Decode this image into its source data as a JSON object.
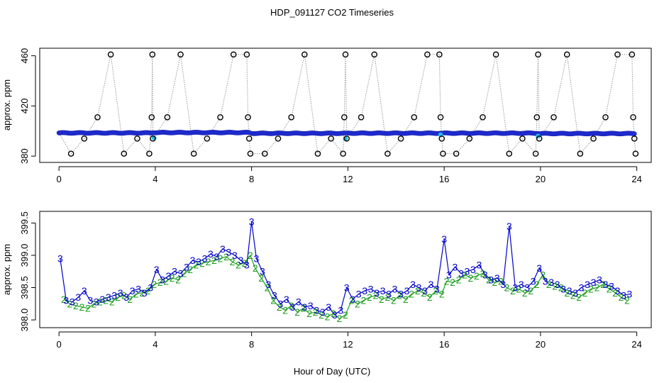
{
  "title": "HDP_091127  CO2 Timeseries",
  "xlabel": "Hour of Day (UTC)",
  "colors": {
    "ring_marker": "#000000",
    "dot_fill": "#1f2fd8",
    "dot_fill_light": "#2ab6e8",
    "series_3": "#0000cc",
    "series_2": "#1a9c1a",
    "connector": "#9a9a9a",
    "axis": "#000000"
  },
  "chart_data": [
    {
      "type": "scatter",
      "panel": "top",
      "ylabel": "approx. ppm",
      "xlim": [
        -0.8,
        24.6
      ],
      "ylim": [
        375,
        466
      ],
      "x_ticks": [
        0,
        4,
        8,
        12,
        16,
        20,
        24
      ],
      "y_ticks": [
        380,
        420,
        460
      ],
      "baseline": {
        "segments": [
          {
            "x0": 0.0,
            "x1": 3.85,
            "y": 398.5
          },
          {
            "x0": 3.9,
            "x1": 7.9,
            "y": 398.8
          },
          {
            "x0": 8.0,
            "x1": 11.9,
            "y": 398.2
          },
          {
            "x0": 12.0,
            "x1": 15.9,
            "y": 398.3
          },
          {
            "x0": 16.0,
            "x1": 19.9,
            "y": 398.3
          },
          {
            "x0": 20.0,
            "x1": 23.9,
            "y": 398.0
          }
        ],
        "step": 0.05
      },
      "light_dots": [
        {
          "x": 3.95,
          "y": 394.5
        },
        {
          "x": 11.9,
          "y": 394.0
        },
        {
          "x": 15.85,
          "y": 397.0
        },
        {
          "x": 19.9,
          "y": 396.0
        }
      ],
      "rings": [
        {
          "x": 0.5,
          "y": 382
        },
        {
          "x": 1.05,
          "y": 394
        },
        {
          "x": 1.6,
          "y": 411
        },
        {
          "x": 2.15,
          "y": 461
        },
        {
          "x": 2.7,
          "y": 382
        },
        {
          "x": 3.25,
          "y": 394
        },
        {
          "x": 3.75,
          "y": 382
        },
        {
          "x": 3.85,
          "y": 411
        },
        {
          "x": 3.88,
          "y": 461
        },
        {
          "x": 3.9,
          "y": 394
        },
        {
          "x": 4.5,
          "y": 411
        },
        {
          "x": 5.05,
          "y": 461
        },
        {
          "x": 5.6,
          "y": 382
        },
        {
          "x": 6.15,
          "y": 394
        },
        {
          "x": 6.7,
          "y": 411
        },
        {
          "x": 7.25,
          "y": 461
        },
        {
          "x": 7.8,
          "y": 461
        },
        {
          "x": 7.85,
          "y": 411
        },
        {
          "x": 7.9,
          "y": 394
        },
        {
          "x": 7.95,
          "y": 382
        },
        {
          "x": 8.55,
          "y": 382
        },
        {
          "x": 9.1,
          "y": 394
        },
        {
          "x": 9.65,
          "y": 411
        },
        {
          "x": 10.2,
          "y": 461
        },
        {
          "x": 10.75,
          "y": 382
        },
        {
          "x": 11.3,
          "y": 394
        },
        {
          "x": 11.8,
          "y": 382
        },
        {
          "x": 11.85,
          "y": 411
        },
        {
          "x": 11.9,
          "y": 461
        },
        {
          "x": 11.95,
          "y": 394
        },
        {
          "x": 12.55,
          "y": 411
        },
        {
          "x": 13.1,
          "y": 461
        },
        {
          "x": 13.65,
          "y": 382
        },
        {
          "x": 14.2,
          "y": 394
        },
        {
          "x": 14.75,
          "y": 411
        },
        {
          "x": 15.3,
          "y": 461
        },
        {
          "x": 15.8,
          "y": 461
        },
        {
          "x": 15.85,
          "y": 411
        },
        {
          "x": 15.9,
          "y": 394
        },
        {
          "x": 15.95,
          "y": 382
        },
        {
          "x": 16.5,
          "y": 382
        },
        {
          "x": 17.05,
          "y": 394
        },
        {
          "x": 17.6,
          "y": 411
        },
        {
          "x": 18.15,
          "y": 461
        },
        {
          "x": 18.7,
          "y": 382
        },
        {
          "x": 19.25,
          "y": 394
        },
        {
          "x": 19.8,
          "y": 382
        },
        {
          "x": 19.85,
          "y": 411
        },
        {
          "x": 19.9,
          "y": 461
        },
        {
          "x": 19.95,
          "y": 394
        },
        {
          "x": 20.55,
          "y": 411
        },
        {
          "x": 21.1,
          "y": 461
        },
        {
          "x": 21.65,
          "y": 382
        },
        {
          "x": 22.2,
          "y": 394
        },
        {
          "x": 22.7,
          "y": 411
        },
        {
          "x": 23.2,
          "y": 461
        },
        {
          "x": 23.8,
          "y": 461
        },
        {
          "x": 23.85,
          "y": 411
        },
        {
          "x": 23.9,
          "y": 394
        },
        {
          "x": 23.95,
          "y": 382
        }
      ]
    },
    {
      "type": "line",
      "panel": "bottom",
      "ylabel": "approx. ppm",
      "xlim": [
        -0.8,
        24.6
      ],
      "ylim": [
        397.88,
        399.68
      ],
      "x_ticks": [
        0,
        4,
        8,
        12,
        16,
        20,
        24
      ],
      "y_ticks": [
        398.0,
        398.5,
        399.0,
        399.5
      ],
      "series": [
        {
          "marker": "3",
          "x": [
            0.05,
            0.3,
            0.55,
            0.8,
            1.05,
            1.3,
            1.55,
            1.8,
            2.05,
            2.3,
            2.55,
            2.8,
            3.05,
            3.3,
            3.55,
            3.8,
            4.05,
            4.3,
            4.55,
            4.8,
            5.05,
            5.3,
            5.55,
            5.8,
            6.05,
            6.3,
            6.55,
            6.8,
            7.05,
            7.3,
            7.55,
            7.8,
            8.0,
            8.2,
            8.45,
            8.7,
            8.95,
            9.2,
            9.45,
            9.7,
            9.95,
            10.2,
            10.45,
            10.7,
            10.95,
            11.2,
            11.45,
            11.7,
            11.95,
            12.2,
            12.45,
            12.7,
            12.95,
            13.2,
            13.45,
            13.7,
            13.95,
            14.2,
            14.45,
            14.7,
            14.95,
            15.2,
            15.45,
            15.7,
            16.0,
            16.2,
            16.45,
            16.7,
            16.95,
            17.2,
            17.45,
            17.7,
            17.95,
            18.2,
            18.45,
            18.7,
            18.95,
            19.2,
            19.45,
            19.7,
            19.95,
            20.2,
            20.45,
            20.7,
            20.95,
            21.2,
            21.45,
            21.7,
            21.95,
            22.2,
            22.45,
            22.7,
            22.95,
            23.2,
            23.45,
            23.7
          ],
          "y": [
            398.95,
            398.3,
            398.28,
            398.35,
            398.45,
            398.3,
            398.28,
            398.32,
            398.35,
            398.38,
            398.42,
            398.35,
            398.45,
            398.48,
            398.42,
            398.5,
            398.78,
            398.62,
            398.68,
            398.75,
            398.72,
            398.82,
            398.92,
            398.9,
            398.95,
            399.02,
            398.98,
            399.1,
            399.05,
            399.0,
            398.92,
            398.85,
            399.52,
            398.95,
            398.75,
            398.55,
            398.38,
            398.25,
            398.32,
            398.2,
            398.28,
            398.2,
            398.22,
            398.15,
            398.12,
            398.2,
            398.08,
            398.15,
            398.5,
            398.32,
            398.4,
            398.45,
            398.48,
            398.42,
            398.45,
            398.4,
            398.48,
            398.4,
            398.45,
            398.55,
            398.5,
            398.45,
            398.55,
            398.48,
            399.25,
            398.7,
            398.82,
            398.72,
            398.75,
            398.78,
            398.85,
            398.7,
            398.62,
            398.65,
            398.55,
            399.45,
            398.5,
            398.55,
            398.5,
            398.6,
            398.8,
            398.6,
            398.58,
            398.55,
            398.48,
            398.45,
            398.42,
            398.5,
            398.55,
            398.58,
            398.62,
            398.55,
            398.52,
            398.45,
            398.38,
            398.4
          ]
        },
        {
          "marker": "2",
          "x": [
            0.2,
            0.45,
            0.7,
            0.95,
            1.2,
            1.45,
            1.7,
            1.95,
            2.2,
            2.45,
            2.7,
            2.95,
            3.2,
            3.45,
            3.7,
            3.95,
            4.2,
            4.45,
            4.7,
            4.95,
            5.2,
            5.45,
            5.7,
            5.95,
            6.2,
            6.45,
            6.7,
            6.95,
            7.2,
            7.45,
            7.7,
            7.95,
            8.15,
            8.4,
            8.65,
            8.9,
            9.15,
            9.4,
            9.65,
            9.9,
            10.15,
            10.4,
            10.65,
            10.9,
            11.15,
            11.4,
            11.65,
            11.9,
            12.15,
            12.4,
            12.65,
            12.9,
            13.15,
            13.4,
            13.65,
            13.9,
            14.15,
            14.4,
            14.65,
            14.9,
            15.15,
            15.4,
            15.65,
            15.9,
            16.1,
            16.35,
            16.6,
            16.85,
            17.1,
            17.35,
            17.6,
            17.85,
            18.1,
            18.35,
            18.6,
            18.85,
            19.1,
            19.35,
            19.6,
            19.85,
            20.1,
            20.35,
            20.6,
            20.85,
            21.1,
            21.35,
            21.6,
            21.85,
            22.1,
            22.35,
            22.6,
            22.85,
            23.1,
            23.35,
            23.6
          ],
          "y": [
            398.32,
            398.25,
            398.22,
            398.2,
            398.18,
            398.25,
            398.28,
            398.3,
            398.28,
            398.35,
            398.38,
            398.32,
            398.4,
            398.42,
            398.45,
            398.55,
            398.58,
            398.6,
            398.65,
            398.62,
            398.72,
            398.78,
            398.85,
            398.88,
            398.9,
            398.92,
            398.95,
            398.98,
            398.9,
            398.85,
            398.88,
            399.0,
            398.8,
            398.65,
            398.5,
            398.3,
            398.2,
            398.15,
            398.22,
            398.12,
            398.18,
            398.1,
            398.12,
            398.08,
            398.05,
            398.1,
            398.02,
            398.08,
            398.3,
            398.25,
            398.3,
            398.35,
            398.38,
            398.32,
            398.35,
            398.3,
            398.38,
            398.32,
            398.4,
            398.45,
            398.42,
            398.35,
            398.45,
            398.4,
            398.6,
            398.58,
            398.62,
            398.7,
            398.65,
            398.68,
            398.72,
            398.62,
            398.58,
            398.6,
            398.5,
            398.45,
            398.48,
            398.42,
            398.45,
            398.55,
            398.7,
            398.55,
            398.52,
            398.5,
            398.42,
            398.38,
            398.35,
            398.42,
            398.48,
            398.5,
            398.55,
            398.48,
            398.42,
            398.35,
            398.3
          ]
        }
      ]
    }
  ]
}
